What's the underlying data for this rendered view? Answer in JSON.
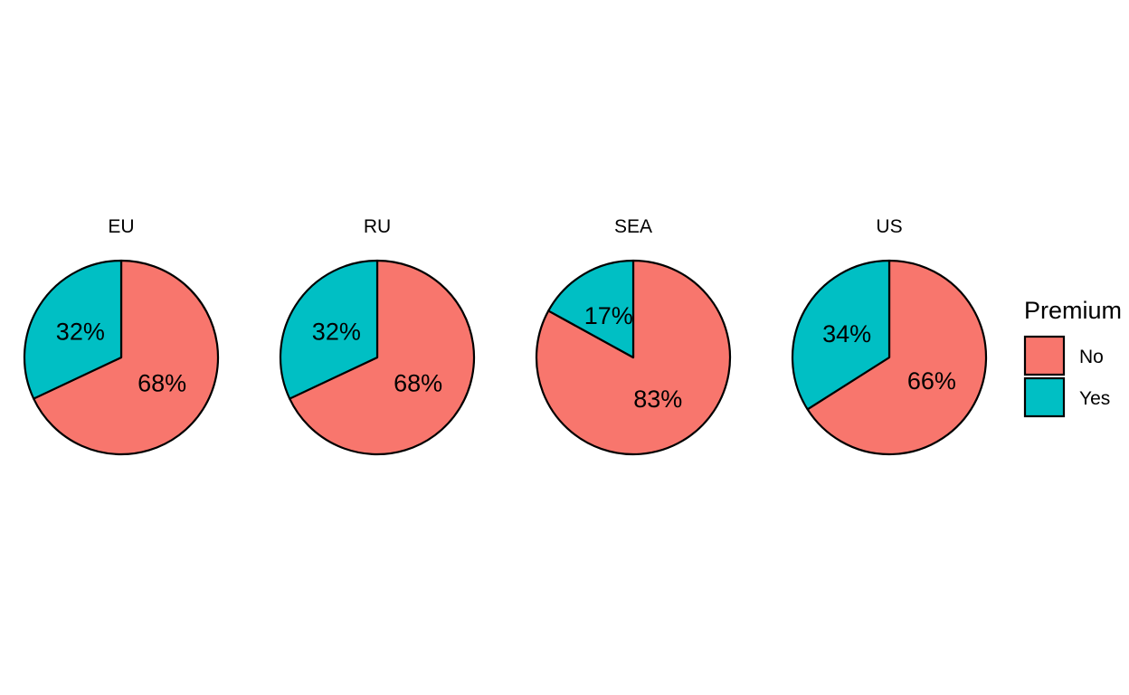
{
  "chart_data": {
    "type": "pie",
    "facets": [
      {
        "name": "EU",
        "slices": [
          {
            "category": "No",
            "value": 68,
            "label": "68%"
          },
          {
            "category": "Yes",
            "value": 32,
            "label": "32%"
          }
        ]
      },
      {
        "name": "RU",
        "slices": [
          {
            "category": "No",
            "value": 68,
            "label": "68%"
          },
          {
            "category": "Yes",
            "value": 32,
            "label": "32%"
          }
        ]
      },
      {
        "name": "SEA",
        "slices": [
          {
            "category": "No",
            "value": 83,
            "label": "83%"
          },
          {
            "category": "Yes",
            "value": 17,
            "label": "17%"
          }
        ]
      },
      {
        "name": "US",
        "slices": [
          {
            "category": "No",
            "value": 66,
            "label": "66%"
          },
          {
            "category": "Yes",
            "value": 34,
            "label": "34%"
          }
        ]
      }
    ],
    "legend": {
      "title": "Premium",
      "position": "right",
      "entries": [
        {
          "label": "No",
          "color": "#F8766D"
        },
        {
          "label": "Yes",
          "color": "#00BFC4"
        }
      ]
    }
  }
}
